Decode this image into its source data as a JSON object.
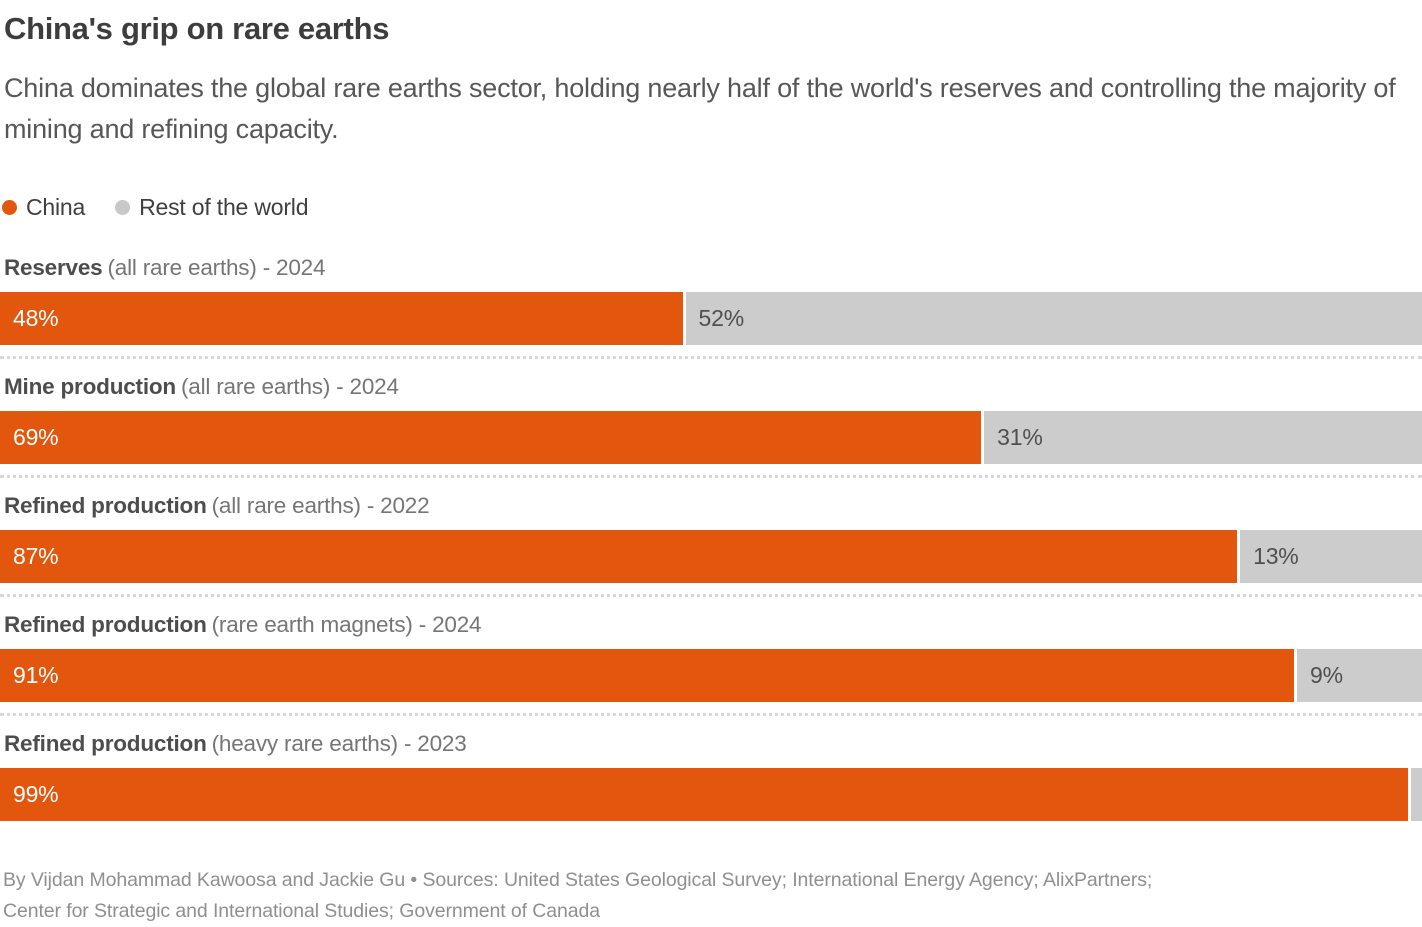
{
  "header": {
    "title": "China's grip on rare earths",
    "subtitle": "China dominates the global rare earths sector, holding nearly half of the world's reserves and controlling the majority of mining and refining capacity."
  },
  "legend": {
    "china": {
      "label": "China",
      "color": "#e2560e"
    },
    "rest": {
      "label": "Rest of the world",
      "color": "#c8c8c8"
    }
  },
  "chart_data": {
    "type": "bar",
    "orientation": "horizontal",
    "stacked": true,
    "xlim": [
      0,
      100
    ],
    "series_names": [
      "China",
      "Rest of the world"
    ],
    "colors": {
      "china": "#e2560e",
      "rest": "#cccccc"
    },
    "rows": [
      {
        "category_bold": "Reserves",
        "category_detail": "(all rare earths) - 2024",
        "china_pct": 48,
        "rest_pct": 52,
        "china_label": "48%",
        "rest_label": "52%"
      },
      {
        "category_bold": "Mine production",
        "category_detail": "(all rare earths) - 2024",
        "china_pct": 69,
        "rest_pct": 31,
        "china_label": "69%",
        "rest_label": "31%"
      },
      {
        "category_bold": "Refined production",
        "category_detail": "(all rare earths) - 2022",
        "china_pct": 87,
        "rest_pct": 13,
        "china_label": "87%",
        "rest_label": "13%"
      },
      {
        "category_bold": "Refined production",
        "category_detail": "(rare earth magnets) - 2024",
        "china_pct": 91,
        "rest_pct": 9,
        "china_label": "91%",
        "rest_label": "9%"
      },
      {
        "category_bold": "Refined production",
        "category_detail": "(heavy rare earths) - 2023",
        "china_pct": 99,
        "rest_pct": 1,
        "china_label": "99%",
        "rest_label": ""
      }
    ]
  },
  "footer": {
    "line1": "By Vijdan Mohammad Kawoosa and Jackie Gu • Sources: United States Geological Survey; International Energy Agency; AlixPartners;",
    "line2": "Center for Strategic and International Studies; Government of Canada"
  }
}
